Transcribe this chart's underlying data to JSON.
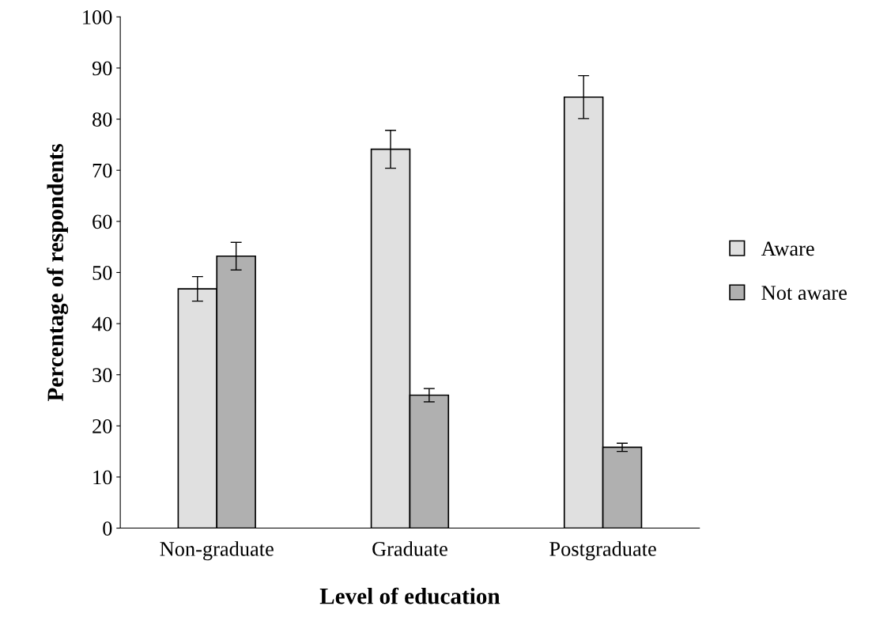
{
  "chart_data": {
    "type": "bar",
    "xlabel": "Level of education",
    "ylabel": "Percentage of respondents",
    "categories": [
      "Non-graduate",
      "Graduate",
      "Postgraduate"
    ],
    "series": [
      {
        "name": "Aware",
        "color": "#e0e0e0",
        "values": [
          46.8,
          74.1,
          84.3
        ],
        "errors": [
          2.4,
          3.7,
          4.2
        ]
      },
      {
        "name": "Not aware",
        "color": "#b0b0b0",
        "values": [
          53.2,
          26.0,
          15.8
        ],
        "errors": [
          2.7,
          1.3,
          0.8
        ]
      }
    ],
    "ylim": [
      0,
      100
    ],
    "yticks": [
      0,
      10,
      20,
      30,
      40,
      50,
      60,
      70,
      80,
      90,
      100
    ],
    "grid": false,
    "legend": "right"
  }
}
